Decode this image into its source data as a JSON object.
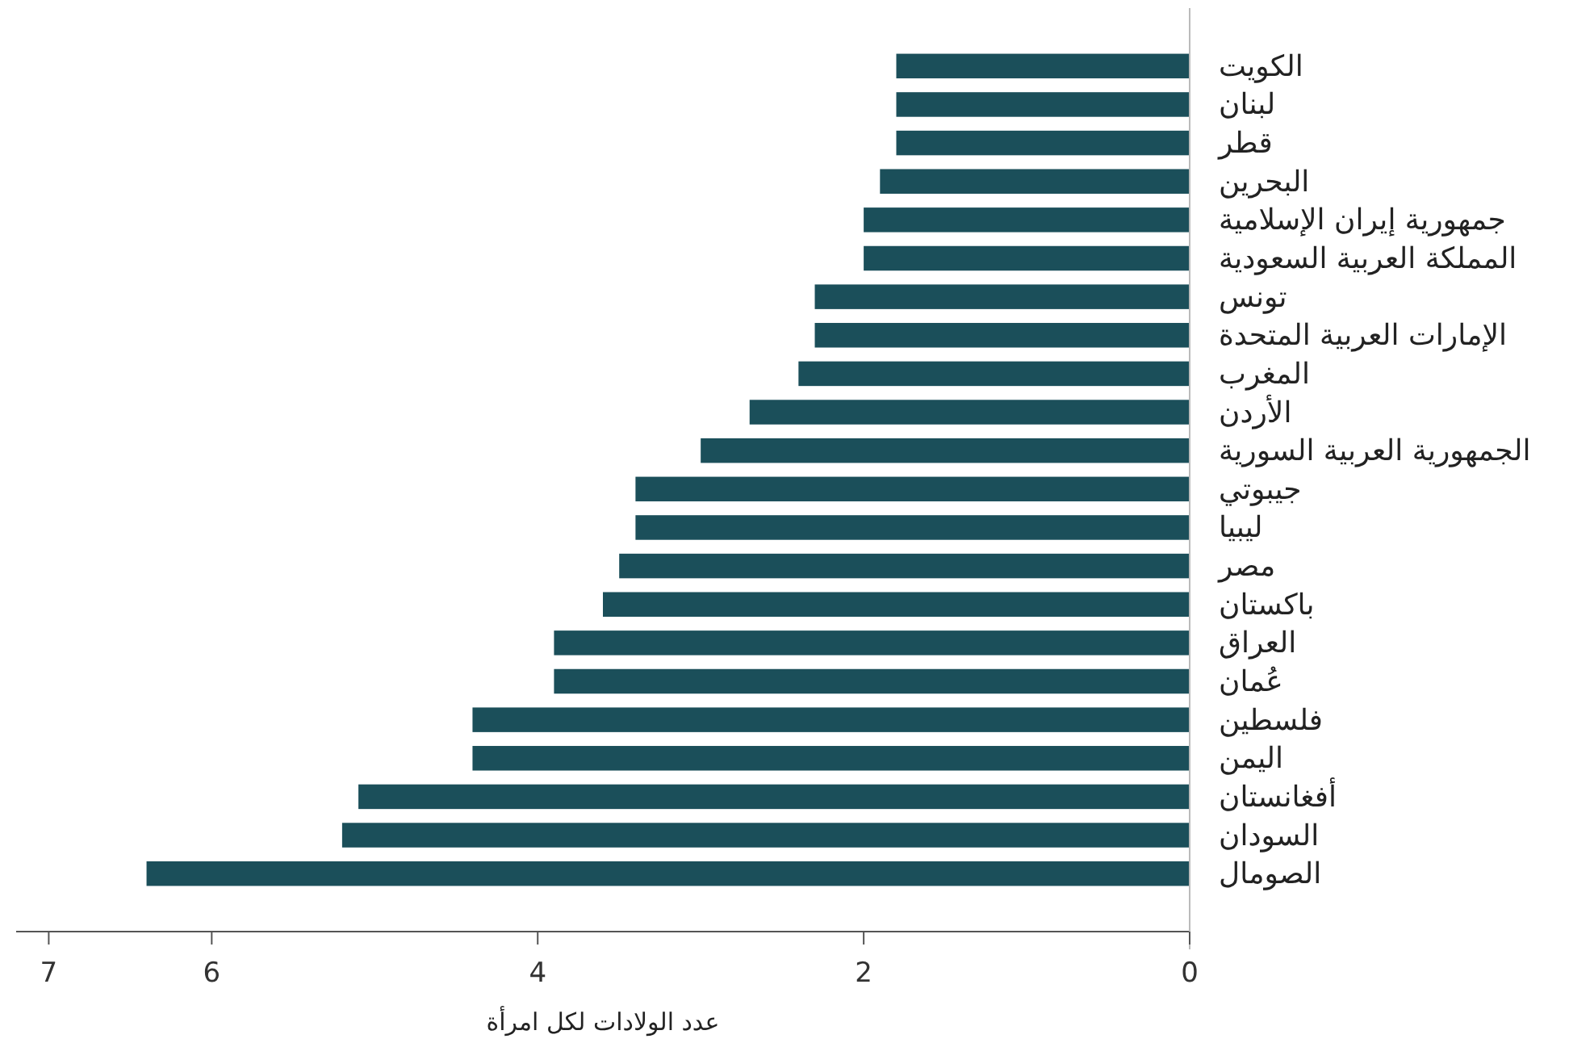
{
  "chart_data": {
    "type": "bar",
    "orientation": "horizontal",
    "xlabel": "عدد الولادات لكل امرأة",
    "categories": [
      "الكويت",
      "لبنان",
      "قطر",
      "البحرين",
      "جمهورية إيران الإسلامية",
      "المملكة العربية السعودية",
      "تونس",
      "الإمارات العربية المتحدة",
      "المغرب",
      "الأردن",
      "الجمهورية العربية السورية",
      "جيبوتي",
      "ليبيا",
      "مصر",
      "باكستان",
      "العراق",
      "عُمان",
      "فلسطين",
      "اليمن",
      "أفغانستان",
      "السودان",
      "الصومال"
    ],
    "values": [
      1.8,
      1.8,
      1.8,
      1.9,
      2.0,
      2.0,
      2.3,
      2.3,
      2.4,
      2.7,
      3.0,
      3.4,
      3.4,
      3.5,
      3.6,
      3.9,
      3.9,
      4.4,
      4.4,
      5.1,
      5.2,
      6.4
    ],
    "color": "#1b4f5a",
    "xlim": [
      7.2,
      0
    ],
    "xticks": [
      7,
      6,
      4,
      2,
      0
    ],
    "grid": false
  }
}
